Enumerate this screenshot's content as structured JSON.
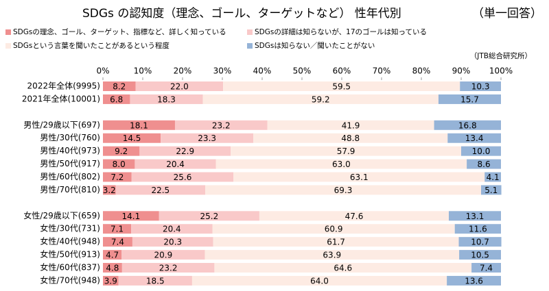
{
  "chart_data": {
    "type": "stacked-bar-horizontal",
    "title": "SDGs の認知度（理念、ゴール、ターゲットなど） 性年代別",
    "subtitle": "（単一回答）",
    "source": "（JTB総合研究所）",
    "categories": [
      "2022年全体(9995)",
      "2021年全体(10001)",
      null,
      "男性/29歳以下(697)",
      "男性/30代(760)",
      "男性/40代(973)",
      "男性/50代(917)",
      "男性/60代(802)",
      "男性/70代(810)",
      null,
      "女性/29歳以下(659)",
      "女性/30代(731)",
      "女性/40代(948)",
      "女性/50代(913)",
      "女性/60代(837)",
      "女性/70代(948)"
    ],
    "series": [
      {
        "name": "SDGsの理念、ゴール、ターゲット、指標など、詳しく知っている",
        "color": "#ef8f8f",
        "values": [
          8.2,
          6.8,
          null,
          18.1,
          14.5,
          9.2,
          8,
          7.2,
          3.2,
          null,
          14.1,
          7.1,
          7.4,
          4.7,
          4.8,
          3.9
        ],
        "value_labels": [
          "8.2",
          "6.8",
          null,
          "18.1",
          "14.5",
          "9.2",
          "8.0",
          "7.2",
          "3.2",
          null,
          "14.1",
          "7.1",
          "7.4",
          "4.7",
          "4.8",
          "3.9"
        ]
      },
      {
        "name": "SDGsの詳細は知らないが、17のゴールは知っている",
        "color": "#f9c9c9",
        "values": [
          22,
          18.3,
          null,
          23.2,
          23.3,
          22.9,
          20.4,
          25.6,
          22.5,
          null,
          25.2,
          20.4,
          20.3,
          20.9,
          23.2,
          18.5
        ],
        "value_labels": [
          "22.0",
          "18.3",
          null,
          "23.2",
          "23.3",
          "22.9",
          "20.4",
          "25.6",
          "22.5",
          null,
          "25.2",
          "20.4",
          "20.3",
          "20.9",
          "23.2",
          "18.5"
        ]
      },
      {
        "name": "SDGsという言葉を聞いたことがあるという程度",
        "color": "#fdebe3",
        "values": [
          59.5,
          59.2,
          null,
          41.9,
          48.8,
          57.9,
          63,
          63.1,
          69.3,
          null,
          47.6,
          60.9,
          61.7,
          63.9,
          64.6,
          64
        ],
        "value_labels": [
          "59.5",
          "59.2",
          null,
          "41.9",
          "48.8",
          "57.9",
          "63.0",
          "63.1",
          "69.3",
          null,
          "47.6",
          "60.9",
          "61.7",
          "63.9",
          "64.6",
          "64.0"
        ]
      },
      {
        "name": "SDGsは知らない／聞いたことがない",
        "color": "#95b3d7",
        "values": [
          10.3,
          15.7,
          null,
          16.8,
          13.4,
          10,
          8.6,
          4.1,
          5.1,
          null,
          13.1,
          11.6,
          10.7,
          10.5,
          7.4,
          13.6
        ],
        "value_labels": [
          "10.3",
          "15.7",
          null,
          "16.8",
          "13.4",
          "10.0",
          "8.6",
          "4.1",
          "5.1",
          null,
          "13.1",
          "11.6",
          "10.7",
          "10.5",
          "7.4",
          "13.6"
        ]
      }
    ],
    "xlim": [
      0,
      100
    ],
    "xticks": [
      {
        "value": 0,
        "label": "0%"
      },
      {
        "value": 10,
        "label": "10%"
      },
      {
        "value": 20,
        "label": "20%"
      },
      {
        "value": 30,
        "label": "30%"
      },
      {
        "value": 40,
        "label": "40%"
      },
      {
        "value": 50,
        "label": "50%"
      },
      {
        "value": 60,
        "label": "60%"
      },
      {
        "value": 70,
        "label": "70%"
      },
      {
        "value": 80,
        "label": "80%"
      },
      {
        "value": 90,
        "label": "90%"
      },
      {
        "value": 100,
        "label": "100%"
      }
    ]
  }
}
